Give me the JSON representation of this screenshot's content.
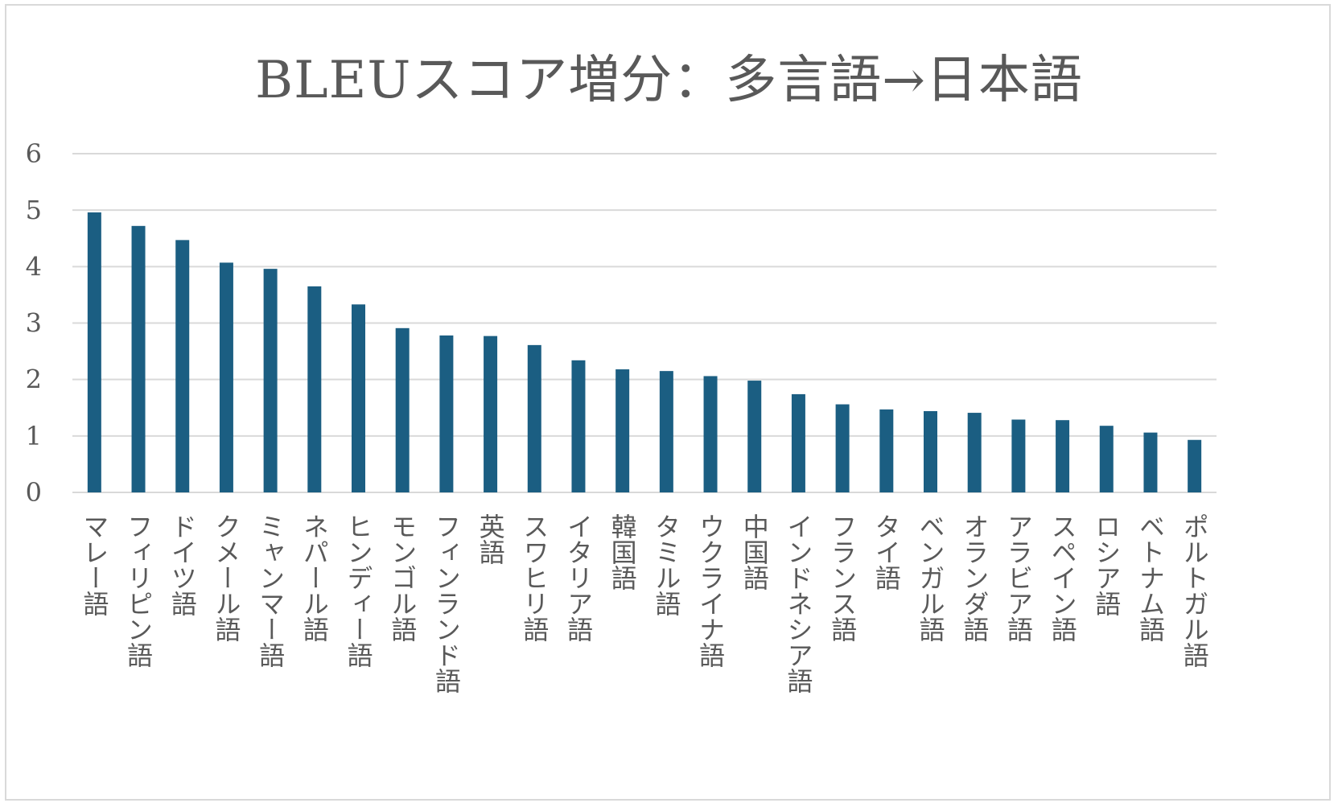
{
  "chart_data": {
    "type": "bar",
    "title": "BLEUスコア増分：多言語→日本語",
    "xlabel": "",
    "ylabel": "",
    "ylim": [
      0,
      6
    ],
    "yticks": [
      0,
      1,
      2,
      3,
      4,
      5,
      6
    ],
    "grid": true,
    "legend": "none",
    "bar_color": "#1b5e82",
    "categories": [
      "マレー語",
      "フィリピン語",
      "ドイツ語",
      "クメール語",
      "ミャンマー語",
      "ネパール語",
      "ヒンディー語",
      "モンゴル語",
      "フィンランド語",
      "英語",
      "スワヒリ語",
      "イタリア語",
      "韓国語",
      "タミル語",
      "ウクライナ語",
      "中国語",
      "インドネシア語",
      "フランス語",
      "タイ語",
      "ベンガル語",
      "オランダ語",
      "アラビア語",
      "スペイン語",
      "ロシア語",
      "ベトナム語",
      "ポルトガル語"
    ],
    "values": [
      4.96,
      4.72,
      4.47,
      4.07,
      3.96,
      3.65,
      3.33,
      2.91,
      2.78,
      2.77,
      2.61,
      2.34,
      2.18,
      2.15,
      2.06,
      1.98,
      1.74,
      1.56,
      1.47,
      1.44,
      1.41,
      1.29,
      1.28,
      1.18,
      1.06,
      0.93
    ]
  }
}
